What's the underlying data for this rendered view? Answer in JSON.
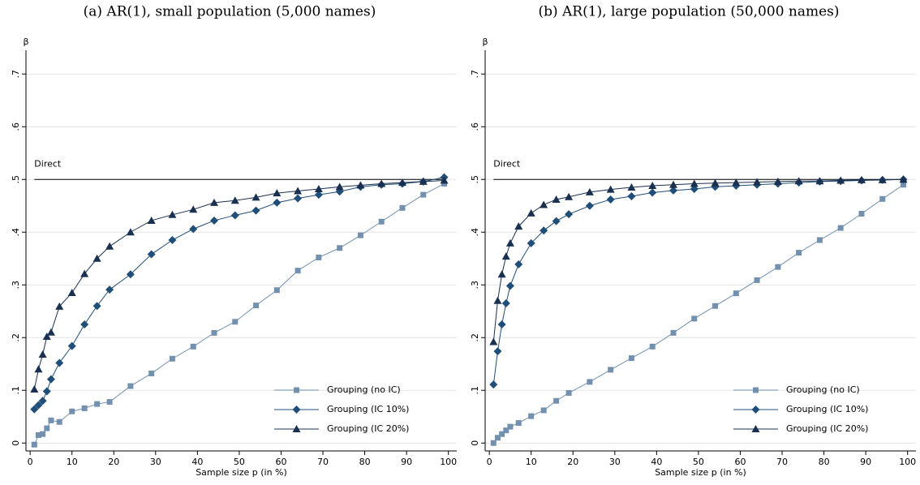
{
  "chart_data": [
    {
      "type": "line",
      "title": "(a) AR(1), small population (5,000 names)",
      "ylabel": "β",
      "xlabel": "Sample size p (in %)",
      "x": [
        1,
        2,
        3,
        4,
        5,
        7,
        10,
        13,
        16,
        19,
        24,
        29,
        34,
        39,
        44,
        49,
        54,
        59,
        64,
        69,
        74,
        79,
        84,
        89,
        94,
        99
      ],
      "series": [
        {
          "name": "Grouping (no IC)",
          "color": "#7391ae",
          "marker": "square",
          "values": [
            -0.003,
            0.015,
            0.017,
            0.028,
            0.043,
            0.04,
            0.06,
            0.066,
            0.074,
            0.078,
            0.108,
            0.132,
            0.16,
            0.183,
            0.209,
            0.23,
            0.261,
            0.29,
            0.327,
            0.352,
            0.37,
            0.394,
            0.42,
            0.446,
            0.471,
            0.492
          ]
        },
        {
          "name": "Grouping (IC 10%)",
          "color": "#1f4e79",
          "marker": "diamond",
          "values": [
            0.064,
            0.072,
            0.08,
            0.098,
            0.121,
            0.152,
            0.184,
            0.225,
            0.26,
            0.291,
            0.32,
            0.358,
            0.385,
            0.406,
            0.422,
            0.432,
            0.441,
            0.456,
            0.464,
            0.471,
            0.477,
            0.486,
            0.49,
            0.492,
            0.496,
            0.504
          ]
        },
        {
          "name": "Grouping (IC 20%)",
          "color": "#1a3050",
          "marker": "triangle",
          "values": [
            0.102,
            0.14,
            0.168,
            0.202,
            0.21,
            0.259,
            0.285,
            0.321,
            0.35,
            0.373,
            0.4,
            0.422,
            0.433,
            0.443,
            0.456,
            0.46,
            0.466,
            0.474,
            0.478,
            0.482,
            0.486,
            0.489,
            0.492,
            0.494,
            0.496,
            0.498
          ]
        }
      ],
      "hline": {
        "value": 0.5,
        "label": "Direct"
      },
      "xlim": [
        -1,
        102
      ],
      "xticks": [
        0,
        10,
        20,
        30,
        40,
        50,
        60,
        70,
        80,
        90,
        100
      ],
      "ylim": [
        -0.015,
        0.745
      ],
      "yticks": [
        0,
        {
          "value": 0.1,
          "label": ".1"
        },
        {
          "value": 0.2,
          "label": ".2"
        },
        {
          "value": 0.3,
          "label": ".3"
        },
        {
          "value": 0.4,
          "label": ".4"
        },
        {
          "value": 0.5,
          "label": ".5"
        },
        {
          "value": 0.6,
          "label": ".6"
        },
        {
          "value": 0.7,
          "label": ".7"
        }
      ],
      "grid": true,
      "legend": "lower right"
    },
    {
      "type": "line",
      "title": "(b) AR(1), large population (50,000 names)",
      "ylabel": "β",
      "xlabel": "Sample size p (in %)",
      "x": [
        1,
        2,
        3,
        4,
        5,
        7,
        10,
        13,
        16,
        19,
        24,
        29,
        34,
        39,
        44,
        49,
        54,
        59,
        64,
        69,
        74,
        79,
        84,
        89,
        94,
        99
      ],
      "series": [
        {
          "name": "Grouping (no IC)",
          "color": "#7391ae",
          "marker": "square",
          "values": [
            0,
            0.01,
            0.017,
            0.024,
            0.031,
            0.038,
            0.051,
            0.062,
            0.08,
            0.095,
            0.116,
            0.139,
            0.161,
            0.183,
            0.209,
            0.236,
            0.26,
            0.284,
            0.309,
            0.334,
            0.361,
            0.385,
            0.408,
            0.435,
            0.463,
            0.49
          ]
        },
        {
          "name": "Grouping (IC 10%)",
          "color": "#1f4e79",
          "marker": "diamond",
          "values": [
            0.111,
            0.174,
            0.225,
            0.265,
            0.298,
            0.339,
            0.379,
            0.403,
            0.421,
            0.434,
            0.45,
            0.462,
            0.468,
            0.475,
            0.479,
            0.482,
            0.486,
            0.488,
            0.49,
            0.492,
            0.494,
            0.496,
            0.497,
            0.498,
            0.499,
            0.5
          ]
        },
        {
          "name": "Grouping (IC 20%)",
          "color": "#1a3050",
          "marker": "triangle",
          "values": [
            0.192,
            0.27,
            0.32,
            0.354,
            0.379,
            0.411,
            0.436,
            0.452,
            0.462,
            0.467,
            0.476,
            0.481,
            0.485,
            0.488,
            0.49,
            0.492,
            0.493,
            0.494,
            0.495,
            0.496,
            0.497,
            0.497,
            0.498,
            0.499,
            0.499,
            0.5
          ]
        }
      ],
      "hline": {
        "value": 0.5,
        "label": "Direct"
      },
      "xlim": [
        -1,
        102
      ],
      "xticks": [
        0,
        10,
        20,
        30,
        40,
        50,
        60,
        70,
        80,
        90,
        100
      ],
      "ylim": [
        -0.015,
        0.745
      ],
      "yticks": [
        0,
        {
          "value": 0.1,
          "label": ".1"
        },
        {
          "value": 0.2,
          "label": ".2"
        },
        {
          "value": 0.3,
          "label": ".3"
        },
        {
          "value": 0.4,
          "label": ".4"
        },
        {
          "value": 0.5,
          "label": ".5"
        },
        {
          "value": 0.6,
          "label": ".6"
        },
        {
          "value": 0.7,
          "label": ".7"
        }
      ],
      "grid": true,
      "legend": "lower right"
    }
  ]
}
